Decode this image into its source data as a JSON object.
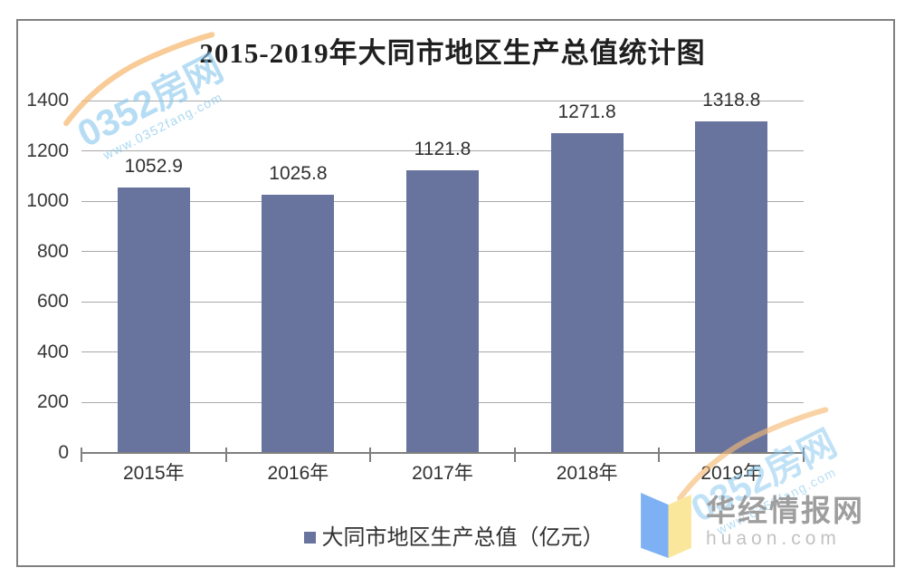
{
  "chart_data": {
    "type": "bar",
    "title": "2015-2019年大同市地区生产总值统计图",
    "categories": [
      "2015年",
      "2016年",
      "2017年",
      "2018年",
      "2019年"
    ],
    "values": [
      1052.9,
      1025.8,
      1121.8,
      1271.8,
      1318.8
    ],
    "series_name": "大同市地区生产总值（亿元）",
    "ylim": [
      0,
      1400
    ],
    "yticks": [
      0,
      200,
      400,
      600,
      800,
      1000,
      1200,
      1400
    ],
    "grid": true,
    "legend_position": "bottom",
    "value_labels": true
  },
  "legend": {
    "label": "大同市地区生产总值（亿元）"
  },
  "watermark": {
    "brand": "0352房网",
    "url": "www.0352fang.com"
  },
  "site_badge": {
    "name": "华经情报网",
    "domain": "huaon.com"
  },
  "colors": {
    "bar": "#68739e",
    "gridline": "#a9a9a9",
    "axis": "#7f7f7f",
    "frame_border": "#808080",
    "watermark_blue": "#85c7ec",
    "watermark_orange": "#f6ba74",
    "badge_blue": "#7eb1f3",
    "badge_yellow": "#fbe79b"
  }
}
